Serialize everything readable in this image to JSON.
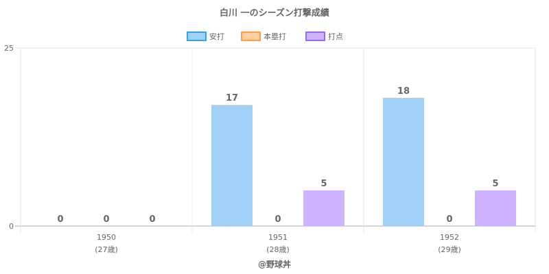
{
  "chart_data": {
    "type": "bar",
    "title": "白川 一のシーズン打撃成績",
    "categories": [
      "1950",
      "1951",
      "1952"
    ],
    "category_sublabels": [
      "(27歳)",
      "(28歳)",
      "(29歳)"
    ],
    "series": [
      {
        "name": "安打",
        "values": [
          0,
          17,
          18
        ],
        "fill": "#9ed1f5",
        "stroke": "#36a2eb"
      },
      {
        "name": "本塁打",
        "values": [
          0,
          0,
          0
        ],
        "fill": "#ffcf9f",
        "stroke": "#ff9f40"
      },
      {
        "name": "打点",
        "values": [
          0,
          5,
          5
        ],
        "fill": "#cdb3ff",
        "stroke": "#9966ff"
      }
    ],
    "ylim": [
      0,
      25
    ],
    "yticks": [
      0,
      25
    ],
    "grid": true,
    "legend": "top-center",
    "xlabel": "",
    "ylabel": ""
  },
  "footer": "@野球丼"
}
